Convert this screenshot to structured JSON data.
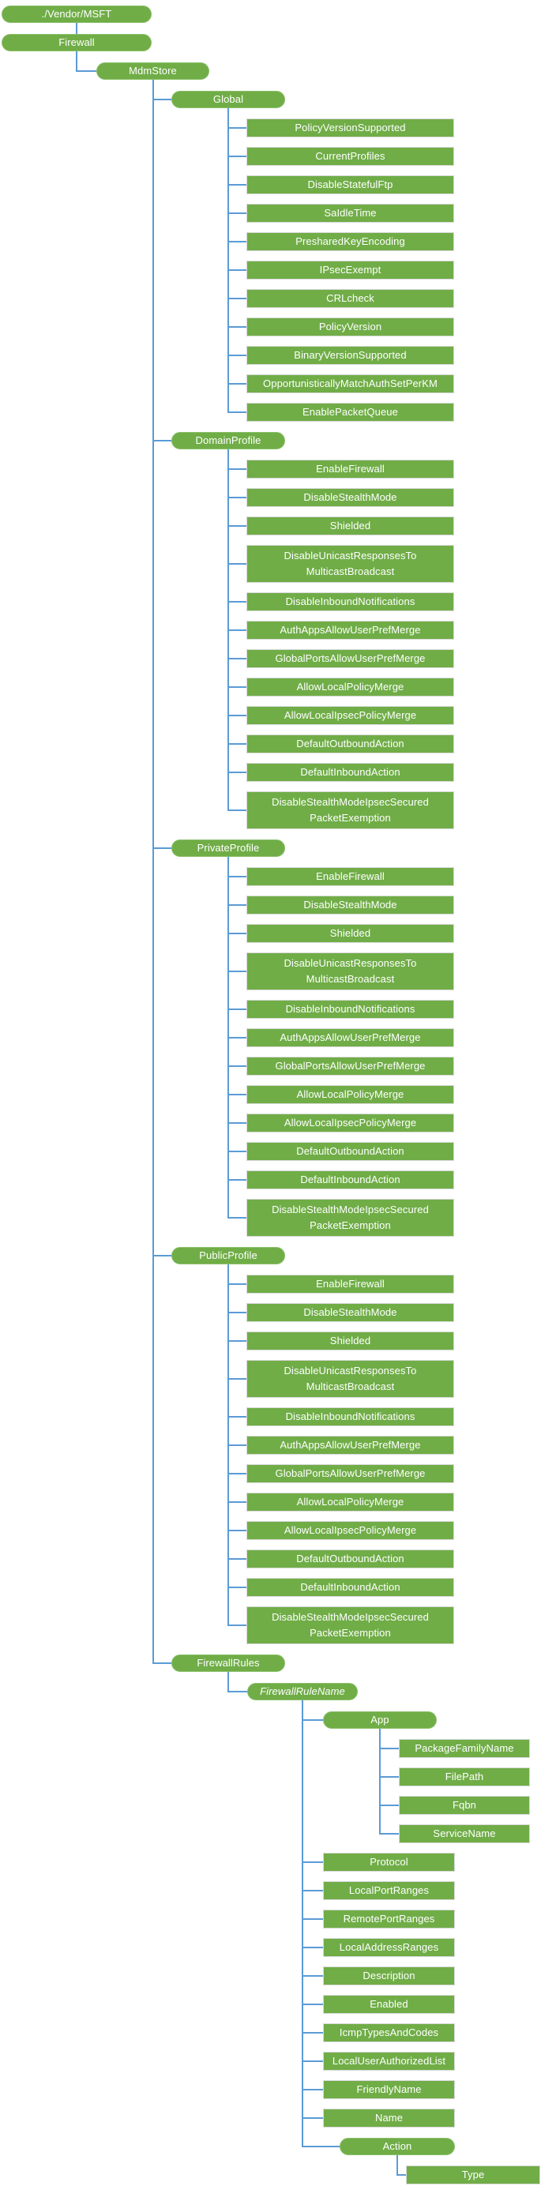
{
  "diagram": {
    "colors": {
      "background": "#FFFFFF",
      "node_fill": "#70AD47",
      "node_text": "#FFFFFF",
      "rect_border": "#D9D9D9",
      "pill_border": "#8ABF68",
      "connector": "#5B9BD5"
    },
    "tree": {
      "label": "./Vendor/MSFT",
      "shape": "pill",
      "children": [
        {
          "label": "Firewall",
          "shape": "pill",
          "children": [
            {
              "label": "MdmStore",
              "shape": "pill",
              "children": [
                {
                  "label": "Global",
                  "shape": "pill",
                  "children": [
                    {
                      "label": "PolicyVersionSupported",
                      "shape": "rect"
                    },
                    {
                      "label": "CurrentProfiles",
                      "shape": "rect"
                    },
                    {
                      "label": "DisableStatefulFtp",
                      "shape": "rect"
                    },
                    {
                      "label": "SaIdleTime",
                      "shape": "rect"
                    },
                    {
                      "label": "PresharedKeyEncoding",
                      "shape": "rect"
                    },
                    {
                      "label": "IPsecExempt",
                      "shape": "rect"
                    },
                    {
                      "label": "CRLcheck",
                      "shape": "rect"
                    },
                    {
                      "label": "PolicyVersion",
                      "shape": "rect"
                    },
                    {
                      "label": "BinaryVersionSupported",
                      "shape": "rect"
                    },
                    {
                      "label": "OpportunisticallyMatchAuthSetPerKM",
                      "shape": "rect"
                    },
                    {
                      "label": "EnablePacketQueue",
                      "shape": "rect"
                    }
                  ]
                },
                {
                  "label": "DomainProfile",
                  "shape": "pill",
                  "children": [
                    {
                      "label": "EnableFirewall",
                      "shape": "rect"
                    },
                    {
                      "label": "DisableStealthMode",
                      "shape": "rect"
                    },
                    {
                      "label": "Shielded",
                      "shape": "rect"
                    },
                    {
                      "label": "DisableUnicastResponsesTo\nMulticastBroadcast",
                      "shape": "rect"
                    },
                    {
                      "label": "DisableInboundNotifications",
                      "shape": "rect"
                    },
                    {
                      "label": "AuthAppsAllowUserPrefMerge",
                      "shape": "rect"
                    },
                    {
                      "label": "GlobalPortsAllowUserPrefMerge",
                      "shape": "rect"
                    },
                    {
                      "label": "AllowLocalPolicyMerge",
                      "shape": "rect"
                    },
                    {
                      "label": "AllowLocalIpsecPolicyMerge",
                      "shape": "rect"
                    },
                    {
                      "label": "DefaultOutboundAction",
                      "shape": "rect"
                    },
                    {
                      "label": "DefaultInboundAction",
                      "shape": "rect"
                    },
                    {
                      "label": "DisableStealthModeIpsecSecured\nPacketExemption",
                      "shape": "rect"
                    }
                  ]
                },
                {
                  "label": "PrivateProfile",
                  "shape": "pill",
                  "children": [
                    {
                      "label": "EnableFirewall",
                      "shape": "rect"
                    },
                    {
                      "label": "DisableStealthMode",
                      "shape": "rect"
                    },
                    {
                      "label": "Shielded",
                      "shape": "rect"
                    },
                    {
                      "label": "DisableUnicastResponsesTo\nMulticastBroadcast",
                      "shape": "rect"
                    },
                    {
                      "label": "DisableInboundNotifications",
                      "shape": "rect"
                    },
                    {
                      "label": "AuthAppsAllowUserPrefMerge",
                      "shape": "rect"
                    },
                    {
                      "label": "GlobalPortsAllowUserPrefMerge",
                      "shape": "rect"
                    },
                    {
                      "label": "AllowLocalPolicyMerge",
                      "shape": "rect"
                    },
                    {
                      "label": "AllowLocalIpsecPolicyMerge",
                      "shape": "rect"
                    },
                    {
                      "label": "DefaultOutboundAction",
                      "shape": "rect"
                    },
                    {
                      "label": "DefaultInboundAction",
                      "shape": "rect"
                    },
                    {
                      "label": "DisableStealthModeIpsecSecured\nPacketExemption",
                      "shape": "rect"
                    }
                  ]
                },
                {
                  "label": "PublicProfile",
                  "shape": "pill",
                  "children": [
                    {
                      "label": "EnableFirewall",
                      "shape": "rect"
                    },
                    {
                      "label": "DisableStealthMode",
                      "shape": "rect"
                    },
                    {
                      "label": "Shielded",
                      "shape": "rect"
                    },
                    {
                      "label": "DisableUnicastResponsesTo\nMulticastBroadcast",
                      "shape": "rect"
                    },
                    {
                      "label": "DisableInboundNotifications",
                      "shape": "rect"
                    },
                    {
                      "label": "AuthAppsAllowUserPrefMerge",
                      "shape": "rect"
                    },
                    {
                      "label": "GlobalPortsAllowUserPrefMerge",
                      "shape": "rect"
                    },
                    {
                      "label": "AllowLocalPolicyMerge",
                      "shape": "rect"
                    },
                    {
                      "label": "AllowLocalIpsecPolicyMerge",
                      "shape": "rect"
                    },
                    {
                      "label": "DefaultOutboundAction",
                      "shape": "rect"
                    },
                    {
                      "label": "DefaultInboundAction",
                      "shape": "rect"
                    },
                    {
                      "label": "DisableStealthModeIpsecSecured\nPacketExemption",
                      "shape": "rect"
                    }
                  ]
                },
                {
                  "label": "FirewallRules",
                  "shape": "pill",
                  "children": [
                    {
                      "label": "FirewallRuleName",
                      "shape": "pill",
                      "italic": true,
                      "children": [
                        {
                          "label": "App",
                          "shape": "pill",
                          "children": [
                            {
                              "label": "PackageFamilyName",
                              "shape": "rect"
                            },
                            {
                              "label": "FilePath",
                              "shape": "rect"
                            },
                            {
                              "label": "Fqbn",
                              "shape": "rect"
                            },
                            {
                              "label": "ServiceName",
                              "shape": "rect"
                            }
                          ]
                        },
                        {
                          "label": "Protocol",
                          "shape": "rect"
                        },
                        {
                          "label": "LocalPortRanges",
                          "shape": "rect"
                        },
                        {
                          "label": "RemotePortRanges",
                          "shape": "rect"
                        },
                        {
                          "label": "LocalAddressRanges",
                          "shape": "rect"
                        },
                        {
                          "label": "Description",
                          "shape": "rect"
                        },
                        {
                          "label": "Enabled",
                          "shape": "rect"
                        },
                        {
                          "label": "IcmpTypesAndCodes",
                          "shape": "rect"
                        },
                        {
                          "label": "LocalUserAuthorizedList",
                          "shape": "rect"
                        },
                        {
                          "label": "FriendlyName",
                          "shape": "rect"
                        },
                        {
                          "label": "Name",
                          "shape": "rect"
                        },
                        {
                          "label": "Action",
                          "shape": "pill",
                          "children": [
                            {
                              "label": "Type",
                              "shape": "rect"
                            }
                          ]
                        }
                      ]
                    }
                  ]
                }
              ]
            }
          ]
        }
      ]
    }
  }
}
